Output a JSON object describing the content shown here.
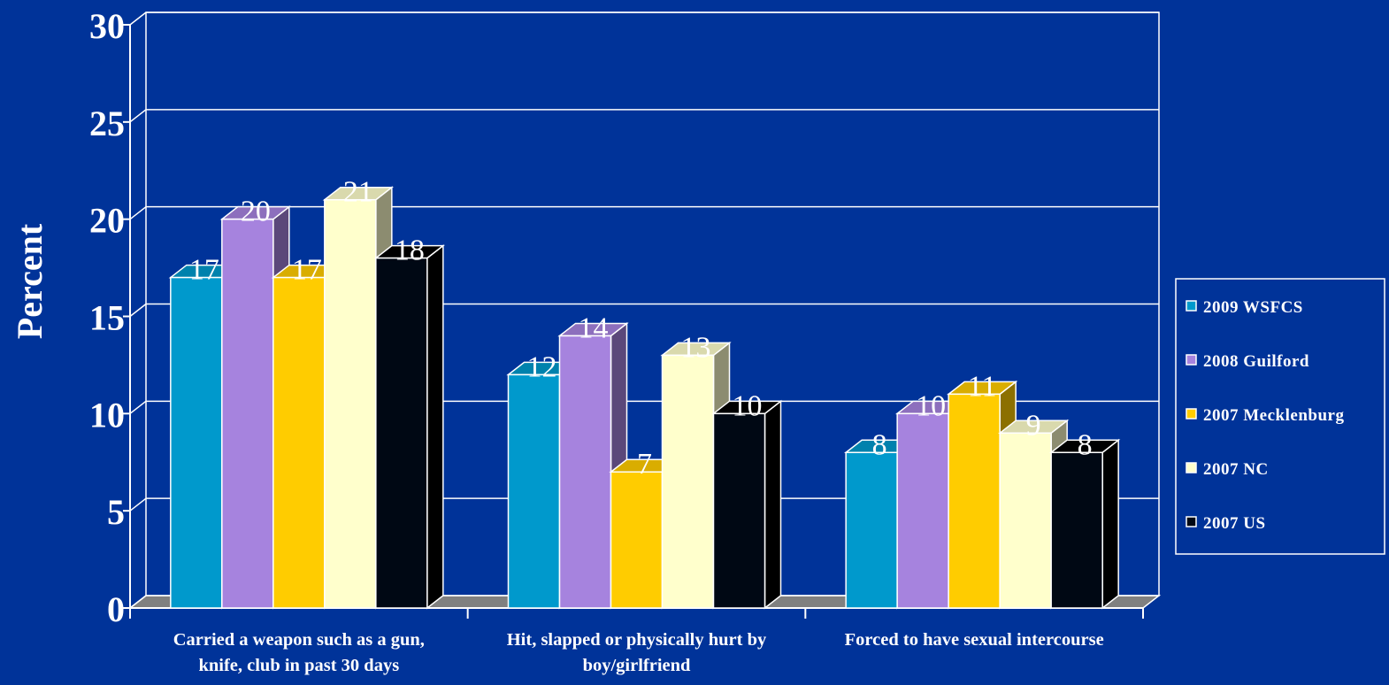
{
  "chart_data": {
    "type": "bar",
    "title": "",
    "xlabel": "",
    "ylabel": "Percent",
    "ylim": [
      0,
      30
    ],
    "yticks": [
      0,
      5,
      10,
      15,
      20,
      25,
      30
    ],
    "grid": true,
    "legend_position": "right",
    "categories": [
      [
        "Carried a weapon such as a gun,",
        "knife, club in past 30 days"
      ],
      [
        "Hit, slapped or physically hurt by",
        "boy/girlfriend"
      ],
      [
        "Forced to have sexual intercourse"
      ]
    ],
    "series": [
      {
        "name": "2009 WSFCS",
        "values": [
          17,
          12,
          8
        ],
        "color": "#0099CC"
      },
      {
        "name": "2008 Guilford",
        "values": [
          20,
          14,
          10
        ],
        "color": "#A683DE"
      },
      {
        "name": "2007 Mecklenburg",
        "values": [
          17,
          7,
          11
        ],
        "color": "#FFCC00"
      },
      {
        "name": "2007 NC",
        "values": [
          21,
          13,
          9
        ],
        "color": "#FFFFCC"
      },
      {
        "name": "2007 US",
        "values": [
          18,
          10,
          8
        ],
        "color": "#000814"
      }
    ]
  },
  "colors": {
    "background": "#003399",
    "text": "#FFFFFF",
    "floor": "#808080"
  }
}
